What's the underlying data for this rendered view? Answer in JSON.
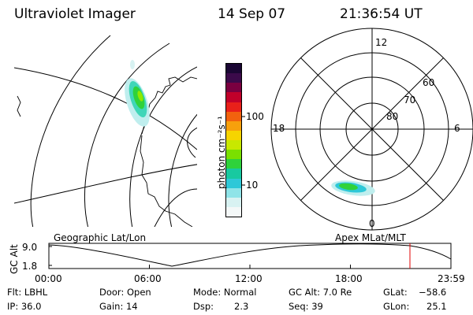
{
  "header": {
    "instrument": "Ultraviolet Imager",
    "date": "14 Sep 07",
    "time": "21:36:54 UT"
  },
  "colorbar": {
    "unit_label": "photon cm⁻²s⁻¹",
    "ticks": [
      "100",
      "10"
    ],
    "colors": [
      "#1a0633",
      "#3b0a4a",
      "#7a0040",
      "#c1002a",
      "#e8201a",
      "#f2620e",
      "#f7a00c",
      "#f6d400",
      "#c8e800",
      "#7ae000",
      "#2fd23a",
      "#18c9a0",
      "#2ec8d8",
      "#8fe4e8",
      "#d8f2f2",
      "#f4f8f8"
    ]
  },
  "polar": {
    "mlt_labels": [
      "12",
      "18",
      "6",
      "0"
    ],
    "lat_labels": [
      "60",
      "70",
      "80"
    ]
  },
  "timeline": {
    "left_label": "Geographic Lat/Lon",
    "right_label": "Apex MLat/MLT",
    "axis_title": "GC Alt",
    "y_ticks": [
      "9.0",
      "1.8"
    ],
    "x_ticks": [
      "00:00",
      "06:00",
      "12:00",
      "18:00",
      "23:59"
    ],
    "marker_color": "#e00000"
  },
  "status": {
    "flt": "Flt: LBHL",
    "ip": "IP: 36.0",
    "door": "Door: Open",
    "gain": "Gain: 14",
    "mode": "Mode: Normal",
    "dsp_label": "Dsp:",
    "dsp_value": "2.3",
    "gcalt": "GC Alt: 7.0 Re",
    "seq": "Seq: 39",
    "glat_label": "GLat:",
    "glat_value": "−58.6",
    "glon_label": "GLon:",
    "glon_value": "25.1"
  }
}
